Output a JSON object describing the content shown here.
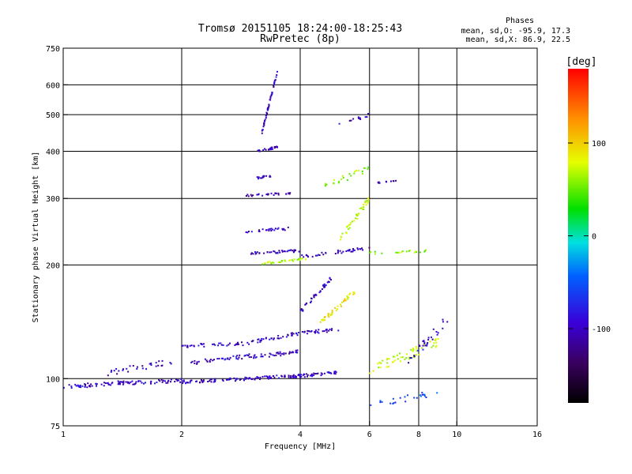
{
  "chart_data": {
    "type": "scatter",
    "title": "Tromsø 20151105 18:24:00-18:25:43",
    "subtitle": "RwPretec (8p)",
    "xlabel": "Frequency [MHz]",
    "ylabel": "Stationary phase Virtual Height [km]",
    "x_scale": "log",
    "y_scale": "log",
    "xlim": [
      1,
      16
    ],
    "ylim": [
      75,
      750
    ],
    "x_ticks": [
      1,
      2,
      4,
      6,
      8,
      10,
      16
    ],
    "x_tick_labels": [
      "1",
      "2",
      "4",
      "6",
      "8",
      "10",
      "16"
    ],
    "y_ticks": [
      75,
      100,
      200,
      300,
      400,
      500,
      600,
      750
    ],
    "y_tick_labels": [
      "75",
      "100",
      "200",
      "300",
      "400",
      "500",
      "600",
      "750"
    ],
    "x_gridlines": [
      2,
      4,
      6,
      8,
      10
    ],
    "y_gridlines": [
      100,
      200,
      300,
      400,
      500,
      600
    ],
    "phases_box": {
      "heading": "Phases",
      "line_o": "mean, sd,O: -95.9, 17.3",
      "line_x": "mean, sd,X:  86.9, 22.5"
    },
    "colorbar": {
      "label": "[deg]",
      "range": [
        -180,
        180
      ],
      "ticks": [
        100,
        0,
        -100
      ],
      "tick_labels": [
        "100",
        "0",
        "-100"
      ],
      "colormap": "rainbow (black-purple-blue-cyan-green-yellow-red)"
    },
    "series": [
      {
        "segments": [
          {
            "f0": 1.0,
            "f1": 1.5,
            "h0": 95,
            "h1": 98,
            "n": 60,
            "p": -100,
            "spread": 0.012
          },
          {
            "f0": 1.4,
            "f1": 2.0,
            "h0": 97,
            "h1": 99,
            "n": 40,
            "p": -100,
            "spread": 0.012
          },
          {
            "f0": 2.0,
            "f1": 3.0,
            "h0": 98,
            "h1": 100,
            "n": 60,
            "p": -100,
            "spread": 0.01
          },
          {
            "f0": 3.0,
            "f1": 4.1,
            "h0": 100,
            "h1": 102,
            "n": 60,
            "p": -100,
            "spread": 0.01
          },
          {
            "f0": 4.1,
            "f1": 5.0,
            "h0": 102,
            "h1": 104,
            "n": 30,
            "p": -100,
            "spread": 0.01
          },
          {
            "f0": 1.3,
            "f1": 2.0,
            "h0": 104,
            "h1": 112,
            "n": 30,
            "p": -100,
            "spread": 0.02
          },
          {
            "f0": 2.1,
            "f1": 3.0,
            "h0": 110,
            "h1": 115,
            "n": 40,
            "p": -100,
            "spread": 0.012
          },
          {
            "f0": 3.0,
            "f1": 4.0,
            "h0": 114,
            "h1": 118,
            "n": 40,
            "p": -100,
            "spread": 0.012
          },
          {
            "f0": 2.0,
            "f1": 3.0,
            "h0": 122,
            "h1": 124,
            "n": 40,
            "p": -100,
            "spread": 0.01
          },
          {
            "f0": 3.0,
            "f1": 4.0,
            "h0": 125,
            "h1": 132,
            "n": 40,
            "p": -100,
            "spread": 0.01
          },
          {
            "f0": 4.0,
            "f1": 5.0,
            "h0": 132,
            "h1": 135,
            "n": 30,
            "p": -100,
            "spread": 0.01
          },
          {
            "f0": 3.2,
            "f1": 3.5,
            "h0": 450,
            "h1": 650,
            "n": 50,
            "p": -100,
            "spread": 0.01
          },
          {
            "f0": 3.1,
            "f1": 3.5,
            "h0": 400,
            "h1": 410,
            "n": 25,
            "p": -100,
            "spread": 0.006
          },
          {
            "f0": 3.1,
            "f1": 3.4,
            "h0": 340,
            "h1": 345,
            "n": 15,
            "p": -100,
            "spread": 0.006
          },
          {
            "f0": 2.9,
            "f1": 3.8,
            "h0": 305,
            "h1": 310,
            "n": 30,
            "p": -110,
            "spread": 0.006
          },
          {
            "f0": 2.9,
            "f1": 3.8,
            "h0": 245,
            "h1": 250,
            "n": 25,
            "p": -100,
            "spread": 0.008
          },
          {
            "f0": 3.0,
            "f1": 4.0,
            "h0": 215,
            "h1": 218,
            "n": 40,
            "p": -100,
            "spread": 0.008
          },
          {
            "f0": 4.0,
            "f1": 6.0,
            "h0": 210,
            "h1": 222,
            "n": 40,
            "p": -100,
            "spread": 0.01
          },
          {
            "f0": 3.2,
            "f1": 4.3,
            "h0": 202,
            "h1": 208,
            "n": 30,
            "p": 70,
            "spread": 0.006
          },
          {
            "f0": 4.0,
            "f1": 4.8,
            "h0": 150,
            "h1": 185,
            "n": 40,
            "p": -100,
            "spread": 0.012
          },
          {
            "f0": 4.5,
            "f1": 5.5,
            "h0": 140,
            "h1": 170,
            "n": 40,
            "p": 100,
            "spread": 0.015
          },
          {
            "f0": 5.0,
            "f1": 6.0,
            "h0": 230,
            "h1": 300,
            "n": 40,
            "p": 80,
            "spread": 0.02
          },
          {
            "f0": 4.5,
            "f1": 6.0,
            "h0": 320,
            "h1": 360,
            "n": 25,
            "p": 60,
            "spread": 0.02
          },
          {
            "f0": 5.0,
            "f1": 6.0,
            "h0": 470,
            "h1": 500,
            "n": 12,
            "p": -100,
            "spread": 0.01
          },
          {
            "f0": 6.0,
            "f1": 9.0,
            "h0": 105,
            "h1": 125,
            "n": 60,
            "p": 80,
            "spread": 0.03
          },
          {
            "f0": 7.5,
            "f1": 9.5,
            "h0": 110,
            "h1": 145,
            "n": 30,
            "p": -100,
            "spread": 0.03
          },
          {
            "f0": 6.0,
            "f1": 9.0,
            "h0": 85,
            "h1": 92,
            "n": 25,
            "p": -60,
            "spread": 0.02
          },
          {
            "f0": 6.0,
            "f1": 8.5,
            "h0": 215,
            "h1": 218,
            "n": 20,
            "p": 60,
            "spread": 0.008
          },
          {
            "f0": 6.3,
            "f1": 7.0,
            "h0": 330,
            "h1": 335,
            "n": 10,
            "p": -100,
            "spread": 0.004
          }
        ]
      }
    ]
  }
}
